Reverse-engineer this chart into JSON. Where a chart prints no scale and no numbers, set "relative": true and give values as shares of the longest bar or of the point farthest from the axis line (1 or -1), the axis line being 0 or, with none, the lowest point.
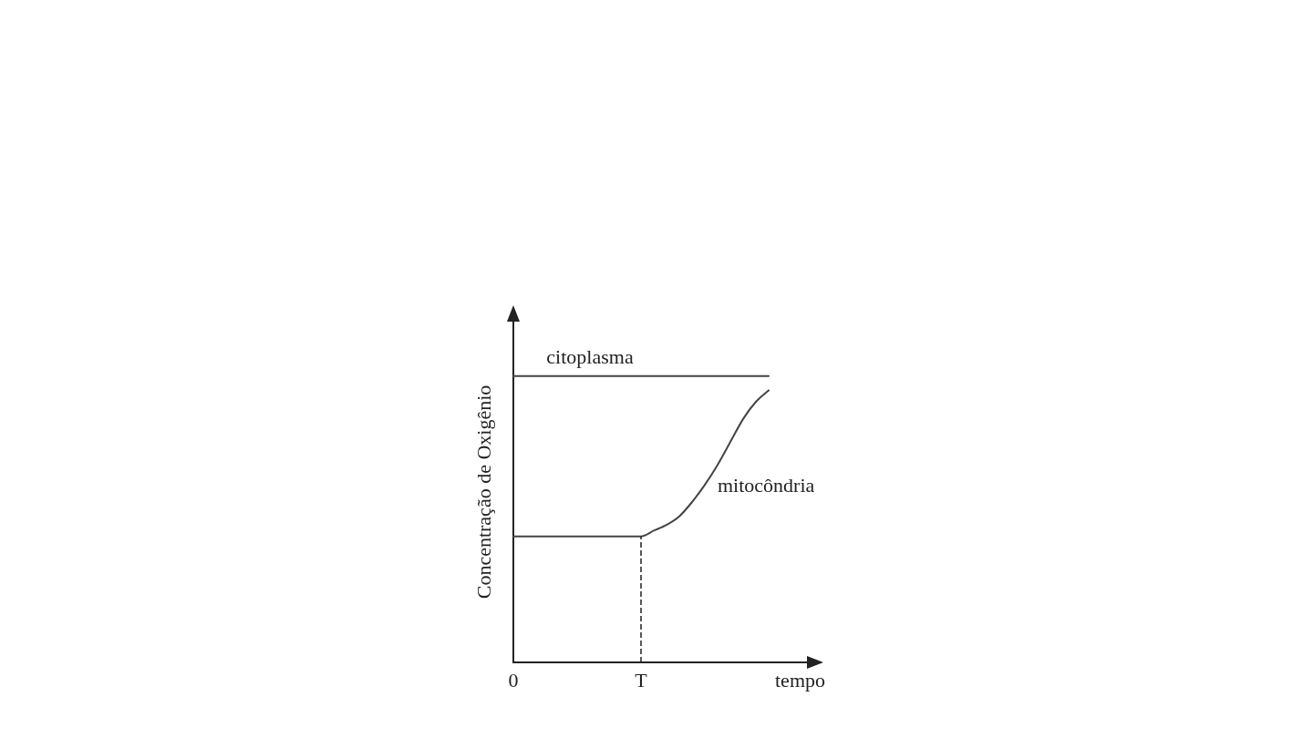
{
  "chart_data": {
    "type": "line",
    "relative": true,
    "xlabel": "tempo",
    "ylabel": "Concentração de Oxigênio",
    "categories": [
      "0",
      null,
      null,
      null,
      null,
      null,
      null,
      null,
      null,
      null,
      "T",
      null,
      null,
      null,
      null,
      null,
      null,
      null,
      null,
      null,
      null,
      null,
      null,
      null
    ],
    "grid": false,
    "legend": false,
    "marker": "none",
    "line_style": "solid",
    "series": [
      {
        "name": "citoplasma",
        "color": "#444444",
        "values": [
          1,
          1,
          1,
          1,
          1,
          1,
          1,
          1,
          1,
          1,
          1,
          1,
          1,
          1,
          1,
          1,
          1,
          1,
          1,
          1,
          1,
          null,
          null,
          null
        ]
      },
      {
        "name": "mitocôndria",
        "color": "#444444",
        "values": [
          0.44,
          0.44,
          0.44,
          0.44,
          0.44,
          0.44,
          0.44,
          0.44,
          0.44,
          0.44,
          0.44,
          0.46,
          0.48,
          0.51,
          0.56,
          0.62,
          0.69,
          0.77,
          0.85,
          0.91,
          0.95,
          null,
          null,
          null
        ]
      }
    ],
    "ref_lines": [
      {
        "axis": "x",
        "value": "T",
        "label": null,
        "line_style": "dashed",
        "color": "#222222"
      }
    ]
  }
}
